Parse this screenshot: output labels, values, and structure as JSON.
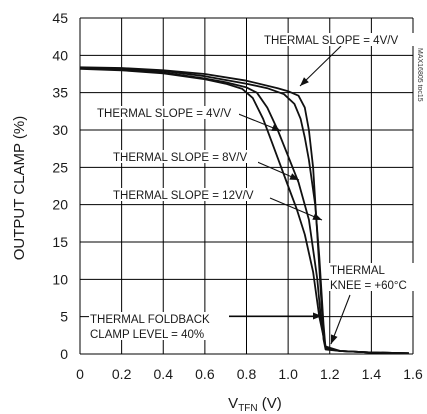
{
  "chart_data": {
    "type": "line",
    "xlabel_main": "V",
    "xlabel_sub": "TFN",
    "xlabel_unit": " (V)",
    "ylabel": "OUTPUT CLAMP (%)",
    "xlim": [
      0,
      1.6
    ],
    "ylim": [
      0,
      45
    ],
    "xticks": [
      "0",
      "0.2",
      "0.4",
      "0.6",
      "0.8",
      "1.0",
      "1.2",
      "1.4",
      "1.6"
    ],
    "yticks": [
      "0",
      "5",
      "10",
      "15",
      "20",
      "25",
      "30",
      "35",
      "40",
      "45"
    ],
    "grid": true,
    "series": [
      {
        "x": [
          0,
          0.2,
          0.4,
          0.6,
          0.8,
          0.95,
          1.0,
          1.05,
          1.08,
          1.1,
          1.12,
          1.14,
          1.16,
          1.17,
          1.18,
          1.25,
          1.4,
          1.58
        ],
        "y": [
          38.4,
          38.3,
          38.0,
          37.5,
          36.6,
          35.6,
          35.2,
          34.6,
          33.0,
          30.0,
          25.0,
          16.0,
          7.0,
          2.0,
          0.6,
          0.4,
          0.2,
          0.1
        ]
      },
      {
        "x": [
          0,
          0.2,
          0.4,
          0.6,
          0.8,
          0.9,
          0.98,
          1.03,
          1.06,
          1.08,
          1.1,
          1.13,
          1.15,
          1.17,
          1.18,
          1.25,
          1.4,
          1.58
        ],
        "y": [
          38.3,
          38.2,
          37.9,
          37.2,
          36.2,
          35.6,
          34.8,
          33.5,
          31.5,
          29.0,
          26.0,
          20.0,
          13.0,
          4.0,
          0.7,
          0.4,
          0.2,
          0.1
        ]
      },
      {
        "x": [
          0,
          0.2,
          0.4,
          0.6,
          0.7,
          0.8,
          0.85,
          0.9,
          0.95,
          1.0,
          1.05,
          1.1,
          1.14,
          1.16,
          1.18,
          1.25,
          1.4,
          1.58
        ],
        "y": [
          38.3,
          38.1,
          37.7,
          36.9,
          36.4,
          35.7,
          35.0,
          33.0,
          30.0,
          26.5,
          23.0,
          18.0,
          10.0,
          4.0,
          0.8,
          0.4,
          0.2,
          0.1
        ]
      },
      {
        "x": [
          0,
          0.2,
          0.4,
          0.6,
          0.7,
          0.78,
          0.83,
          0.88,
          0.92,
          0.96,
          1.0,
          1.04,
          1.08,
          1.12,
          1.15,
          1.18,
          1.25,
          1.4,
          1.58
        ],
        "y": [
          38.2,
          38.0,
          37.6,
          36.8,
          36.2,
          35.5,
          34.3,
          31.5,
          28.5,
          25.5,
          22.5,
          19.5,
          16.0,
          11.0,
          5.0,
          1.0,
          0.4,
          0.2,
          0.1
        ]
      }
    ],
    "annotations": [
      {
        "text": "THERMAL SLOPE = 4V/V"
      },
      {
        "text": "THERMAL SLOPE = 4V/V"
      },
      {
        "text": "THERMAL SLOPE = 8V/V"
      },
      {
        "text": "THERMAL SLOPE = 12V/V"
      },
      {
        "text": "THERMAL"
      },
      {
        "text": "KNEE = +60°C"
      },
      {
        "text": "THERMAL FOLDBACK"
      },
      {
        "text": "CLAMP LEVEL = 40%"
      }
    ],
    "watermark": "MAX16805 toc15"
  }
}
